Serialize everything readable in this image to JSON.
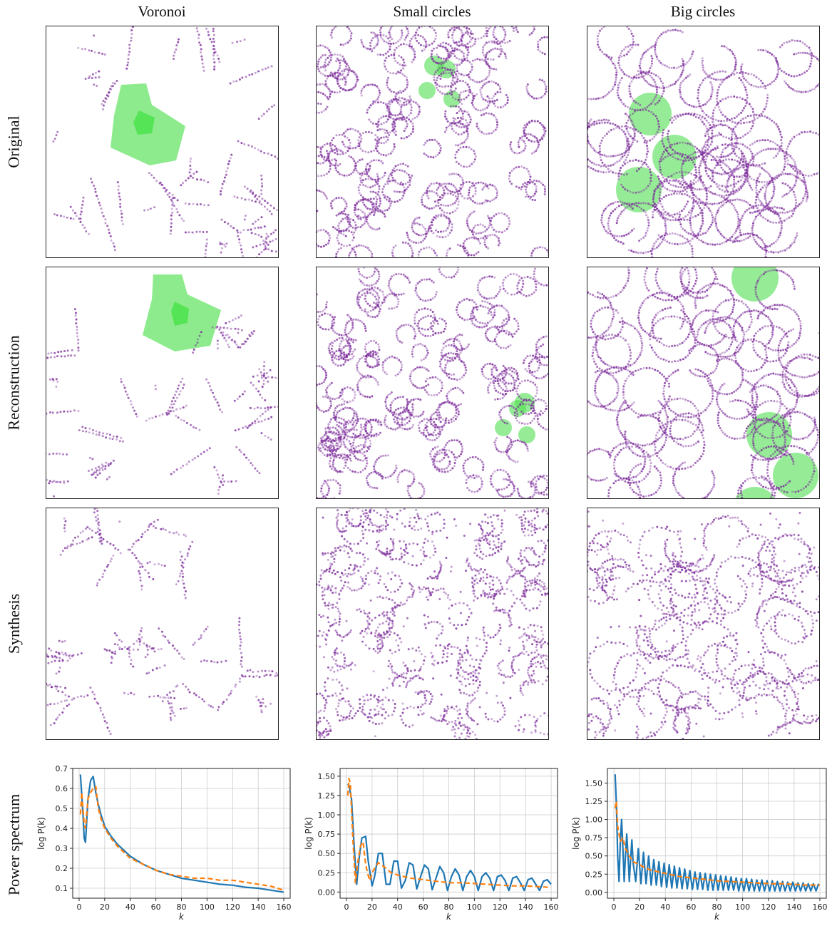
{
  "columns": [
    "Voronoi",
    "Small circles",
    "Big circles"
  ],
  "rows": [
    "Original",
    "Reconstruction",
    "Synthesis",
    "Power spectrum"
  ],
  "colors": {
    "points": "#7b2a9a",
    "highlight": "#50e050",
    "series1": "#1f77b4",
    "series2": "#ff7f0e",
    "grid": "#cccccc"
  },
  "chart_data": [
    {
      "type": "line",
      "panel": "Voronoi",
      "xlabel": "k",
      "ylabel": "log P(k)",
      "xlim": [
        -5,
        165
      ],
      "ylim": [
        0.05,
        0.7
      ],
      "xticks": [
        0,
        20,
        40,
        60,
        80,
        100,
        120,
        140,
        160
      ],
      "yticks": [
        0.1,
        0.2,
        0.3,
        0.4,
        0.5,
        0.6,
        0.7
      ],
      "ytick_labels": [
        "0.1",
        "0.2",
        "0.3",
        "0.4",
        "0.5",
        "0.6",
        "0.7"
      ],
      "grid": true,
      "series": [
        {
          "style": "solid",
          "color": "#1f77b4",
          "x": [
            1,
            3,
            4,
            5,
            7,
            9,
            11,
            13,
            15,
            17,
            20,
            25,
            30,
            35,
            40,
            50,
            60,
            70,
            80,
            90,
            100,
            110,
            120,
            130,
            140,
            150,
            160
          ],
          "y": [
            0.67,
            0.47,
            0.35,
            0.33,
            0.55,
            0.64,
            0.66,
            0.58,
            0.52,
            0.47,
            0.41,
            0.36,
            0.32,
            0.29,
            0.26,
            0.22,
            0.19,
            0.17,
            0.15,
            0.14,
            0.13,
            0.12,
            0.115,
            0.105,
            0.1,
            0.09,
            0.08
          ]
        },
        {
          "style": "dashed",
          "color": "#ff7f0e",
          "x": [
            1,
            2,
            4,
            5,
            7,
            9,
            11,
            13,
            15,
            17,
            20,
            25,
            30,
            35,
            40,
            50,
            60,
            70,
            80,
            90,
            100,
            110,
            120,
            130,
            140,
            150,
            160
          ],
          "y": [
            0.47,
            0.58,
            0.42,
            0.4,
            0.55,
            0.58,
            0.6,
            0.61,
            0.5,
            0.45,
            0.4,
            0.35,
            0.31,
            0.28,
            0.25,
            0.22,
            0.19,
            0.17,
            0.16,
            0.15,
            0.15,
            0.14,
            0.14,
            0.13,
            0.12,
            0.11,
            0.09
          ]
        }
      ]
    },
    {
      "type": "line",
      "panel": "Small circles",
      "xlabel": "k",
      "ylabel": "log P(k)",
      "xlim": [
        -5,
        165
      ],
      "ylim": [
        -0.08,
        1.6
      ],
      "xticks": [
        0,
        20,
        40,
        60,
        80,
        100,
        120,
        140,
        160
      ],
      "yticks": [
        0,
        0.25,
        0.5,
        0.75,
        1.0,
        1.25,
        1.5
      ],
      "ytick_labels": [
        "0.00",
        "0.25",
        "0.50",
        "0.75",
        "1.00",
        "1.25",
        "1.50"
      ],
      "grid": true,
      "series": [
        {
          "style": "solid",
          "color": "#1f77b4",
          "x": [
            1,
            2,
            4,
            6,
            8,
            10,
            12,
            15,
            17,
            20,
            22,
            25,
            28,
            31,
            34,
            37,
            40,
            43,
            46,
            49,
            52,
            55,
            58,
            61,
            64,
            67,
            70,
            73,
            76,
            79,
            82,
            85,
            88,
            91,
            94,
            97,
            100,
            103,
            106,
            109,
            112,
            115,
            118,
            121,
            124,
            127,
            130,
            133,
            136,
            139,
            142,
            145,
            148,
            151,
            154,
            157,
            160
          ],
          "y": [
            1.4,
            1.38,
            1.2,
            0.6,
            0.1,
            0.45,
            0.7,
            0.72,
            0.4,
            0.08,
            0.2,
            0.5,
            0.5,
            0.1,
            0.1,
            0.4,
            0.4,
            0.05,
            0.15,
            0.38,
            0.35,
            0.04,
            0.2,
            0.35,
            0.3,
            0.03,
            0.18,
            0.33,
            0.25,
            0.02,
            0.2,
            0.3,
            0.22,
            0.02,
            0.2,
            0.28,
            0.2,
            0.02,
            0.2,
            0.25,
            0.18,
            0.02,
            0.2,
            0.22,
            0.15,
            0.02,
            0.18,
            0.2,
            0.12,
            0.02,
            0.16,
            0.18,
            0.1,
            0.02,
            0.14,
            0.16,
            0.1
          ]
        },
        {
          "style": "dashed",
          "color": "#ff7f0e",
          "x": [
            1,
            2,
            3,
            5,
            7,
            9,
            11,
            13,
            15,
            18,
            21,
            25,
            30,
            35,
            40,
            50,
            60,
            70,
            80,
            90,
            100,
            110,
            120,
            130,
            140,
            150,
            160
          ],
          "y": [
            1.25,
            1.47,
            1.4,
            0.7,
            0.12,
            0.4,
            0.6,
            0.65,
            0.35,
            0.15,
            0.28,
            0.38,
            0.32,
            0.25,
            0.22,
            0.18,
            0.16,
            0.14,
            0.12,
            0.12,
            0.11,
            0.1,
            0.09,
            0.08,
            0.08,
            0.07,
            0.06
          ]
        }
      ]
    },
    {
      "type": "line",
      "panel": "Big circles",
      "xlabel": "k",
      "ylabel": "log P(k)",
      "xlim": [
        -5,
        165
      ],
      "ylim": [
        -0.08,
        1.7
      ],
      "xticks": [
        0,
        20,
        40,
        60,
        80,
        100,
        120,
        140,
        160
      ],
      "yticks": [
        0,
        0.25,
        0.5,
        0.75,
        1.0,
        1.25,
        1.5
      ],
      "ytick_labels": [
        "0.00",
        "0.25",
        "0.50",
        "0.75",
        "1.00",
        "1.25",
        "1.50"
      ],
      "grid": true,
      "series": [
        {
          "style": "solid",
          "color": "#1f77b4",
          "x": [
            1,
            2,
            3,
            4,
            5,
            6,
            7,
            8,
            9,
            10,
            11,
            12,
            13,
            14,
            15,
            17,
            19,
            21,
            23,
            25,
            27,
            29,
            31,
            33,
            35,
            37,
            39,
            41,
            43,
            45,
            47,
            49,
            51,
            53,
            55,
            57,
            59,
            61,
            63,
            65,
            67,
            69,
            71,
            73,
            75,
            77,
            79,
            81,
            83,
            85,
            87,
            89,
            91,
            93,
            95,
            97,
            99,
            101,
            103,
            105,
            107,
            109,
            111,
            113,
            115,
            117,
            119,
            121,
            123,
            125,
            127,
            129,
            131,
            133,
            135,
            137,
            139,
            141,
            143,
            145,
            147,
            149,
            151,
            153,
            155,
            157,
            159
          ],
          "y": [
            1.62,
            1.2,
            0.5,
            0.15,
            0.7,
            1.0,
            0.6,
            0.15,
            0.5,
            0.8,
            0.5,
            0.15,
            0.45,
            0.72,
            0.4,
            0.15,
            0.6,
            0.12,
            0.55,
            0.12,
            0.5,
            0.1,
            0.45,
            0.1,
            0.42,
            0.08,
            0.4,
            0.07,
            0.38,
            0.06,
            0.36,
            0.06,
            0.34,
            0.05,
            0.32,
            0.05,
            0.3,
            0.04,
            0.28,
            0.04,
            0.27,
            0.04,
            0.26,
            0.03,
            0.25,
            0.03,
            0.24,
            0.03,
            0.23,
            0.03,
            0.22,
            0.03,
            0.21,
            0.03,
            0.2,
            0.02,
            0.19,
            0.02,
            0.19,
            0.02,
            0.18,
            0.02,
            0.17,
            0.02,
            0.17,
            0.02,
            0.16,
            0.02,
            0.16,
            0.02,
            0.15,
            0.02,
            0.15,
            0.02,
            0.14,
            0.02,
            0.14,
            0.02,
            0.13,
            0.02,
            0.13,
            0.02,
            0.12,
            0.02,
            0.12,
            0.02,
            0.12
          ]
        },
        {
          "style": "dashed",
          "color": "#ff7f0e",
          "x": [
            1,
            2,
            3,
            5,
            7,
            9,
            12,
            15,
            20,
            25,
            30,
            40,
            50,
            60,
            70,
            80,
            90,
            100,
            110,
            120,
            130,
            140,
            150,
            160
          ],
          "y": [
            1.15,
            1.25,
            0.9,
            0.7,
            0.75,
            0.6,
            0.5,
            0.42,
            0.38,
            0.33,
            0.3,
            0.26,
            0.22,
            0.2,
            0.18,
            0.16,
            0.15,
            0.14,
            0.13,
            0.12,
            0.12,
            0.11,
            0.1,
            0.1
          ]
        }
      ]
    }
  ]
}
